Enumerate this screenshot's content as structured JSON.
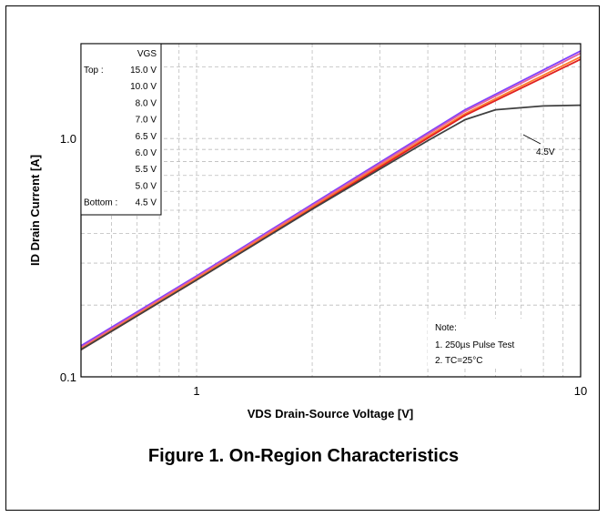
{
  "chart_data": {
    "type": "line",
    "title": "Figure 1. On-Region Characteristics",
    "xlabel": "VDS Drain-Source Voltage [V]",
    "ylabel": "ID Drain Current [A]",
    "xscale": "log",
    "yscale": "log",
    "xlim": [
      0.5,
      10
    ],
    "ylim": [
      0.1,
      2.5
    ],
    "x_ticks": [
      {
        "value": 1,
        "label": "1"
      },
      {
        "value": 10,
        "label": "10"
      }
    ],
    "y_ticks": [
      {
        "value": 0.1,
        "label": "0.1"
      },
      {
        "value": 1.0,
        "label": "1.0"
      }
    ],
    "grid": true,
    "legend": {
      "placement": "top-left",
      "header": "VGS",
      "rows": [
        {
          "prefix": "Top :",
          "value": "15.0 V"
        },
        {
          "prefix": "",
          "value": "10.0 V"
        },
        {
          "prefix": "",
          "value": "8.0 V"
        },
        {
          "prefix": "",
          "value": "7.0 V"
        },
        {
          "prefix": "",
          "value": "6.5 V"
        },
        {
          "prefix": "",
          "value": "6.0 V"
        },
        {
          "prefix": "",
          "value": "5.5 V"
        },
        {
          "prefix": "",
          "value": "5.0 V"
        },
        {
          "prefix": "Bottom :",
          "value": "4.5 V"
        }
      ]
    },
    "annotation": "4.5V",
    "note_lines": [
      "Note:",
      "1. 250µs Pulse Test",
      "2. TC=25°C"
    ],
    "series": [
      {
        "color": "#8040ff",
        "x": [
          0.5,
          1,
          2,
          5,
          10
        ],
        "y": [
          0.135,
          0.265,
          0.53,
          1.32,
          2.33
        ]
      },
      {
        "color": "#e060a0",
        "x": [
          0.5,
          1,
          2,
          5,
          10
        ],
        "y": [
          0.133,
          0.262,
          0.523,
          1.3,
          2.28
        ]
      },
      {
        "color": "#ff7a2a",
        "x": [
          0.5,
          1,
          2,
          5,
          10
        ],
        "y": [
          0.131,
          0.258,
          0.515,
          1.27,
          2.2
        ]
      },
      {
        "color": "#e02020",
        "x": [
          0.5,
          1,
          2,
          5,
          10
        ],
        "y": [
          0.13,
          0.255,
          0.508,
          1.25,
          2.15
        ]
      },
      {
        "color": "#404040",
        "x": [
          0.5,
          1,
          2,
          4,
          5,
          6,
          8,
          10
        ],
        "y": [
          0.13,
          0.255,
          0.505,
          0.98,
          1.2,
          1.32,
          1.37,
          1.38
        ]
      }
    ]
  }
}
